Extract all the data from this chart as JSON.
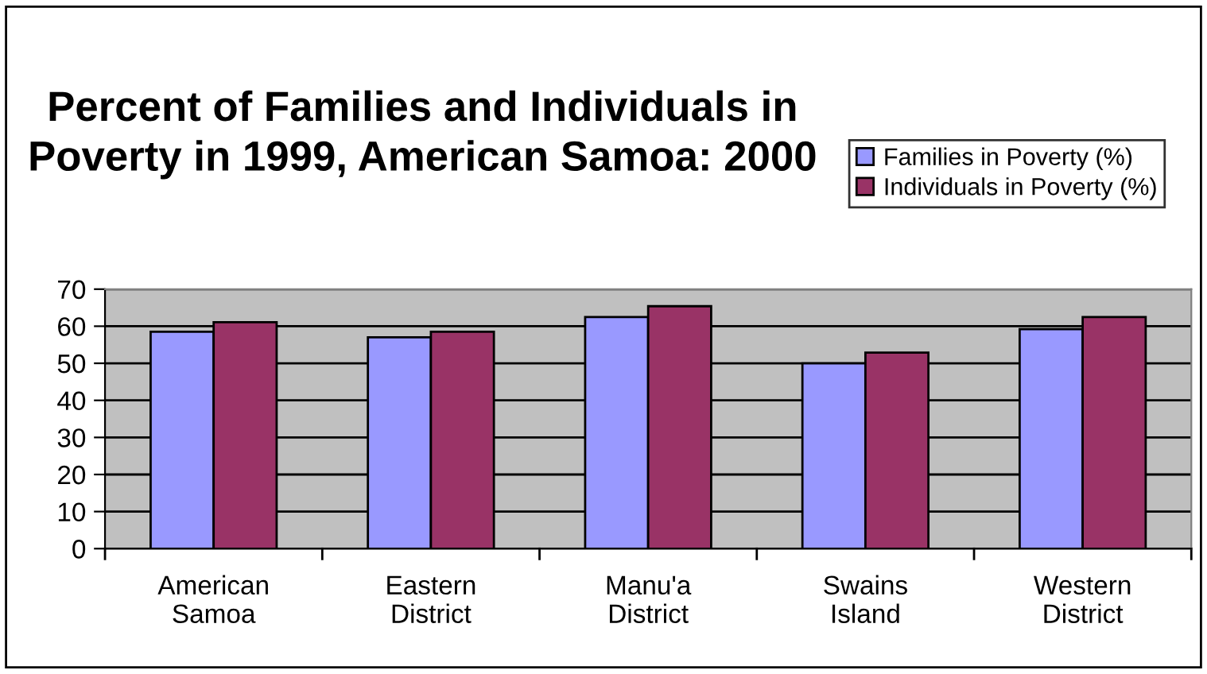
{
  "chart_data": {
    "type": "bar",
    "title": "Percent of Families and Individuals in Poverty in 1999, American Samoa: 2000",
    "categories": [
      "American Samoa",
      "Eastern District",
      "Manu'a District",
      "Swains Island",
      "Western District"
    ],
    "series": [
      {
        "name": "Families in Poverty (%)",
        "color": "#9999ff",
        "values": [
          58.5,
          57.0,
          62.5,
          50.0,
          59.2
        ]
      },
      {
        "name": "Individuals in Poverty (%)",
        "color": "#993366",
        "values": [
          61.1,
          58.5,
          65.4,
          52.9,
          62.5
        ]
      }
    ],
    "ylim": [
      0,
      70
    ],
    "yticks": [
      0,
      10,
      20,
      30,
      40,
      50,
      60,
      70
    ],
    "grid": "y",
    "legend": "top right"
  }
}
